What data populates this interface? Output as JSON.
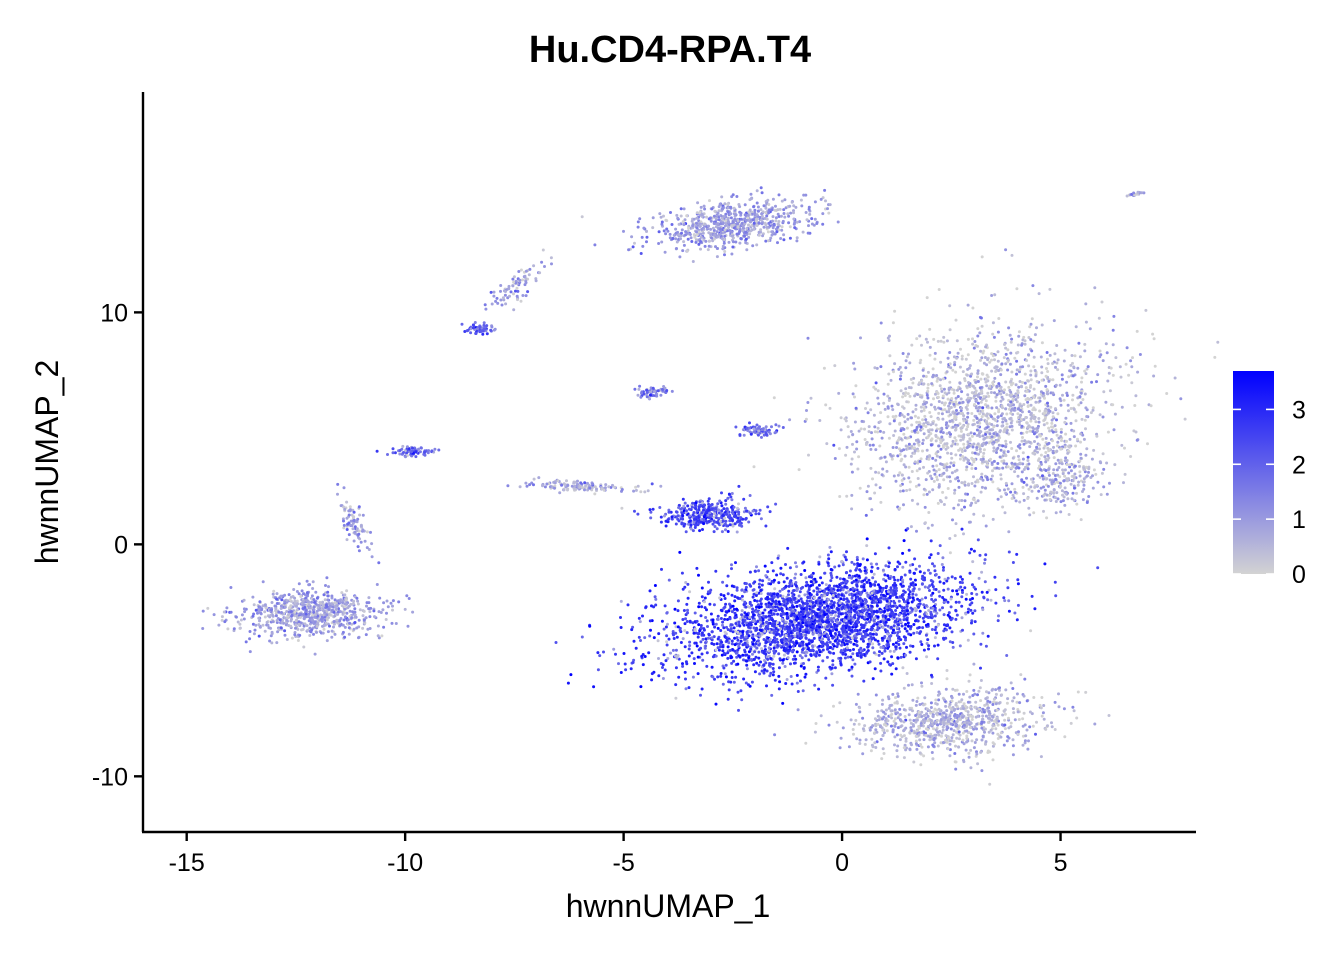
{
  "chart_data": {
    "type": "scatter",
    "title": "Hu.CD4-RPA.T4",
    "xlabel": "hwnnUMAP_1",
    "ylabel": "hwnnUMAP_2",
    "xlim": [
      -16.0,
      8.1
    ],
    "ylim": [
      -12.4,
      19.5
    ],
    "x_ticks": [
      {
        "value": -15,
        "label": "-15"
      },
      {
        "value": -10,
        "label": "-10"
      },
      {
        "value": -5,
        "label": "-5"
      },
      {
        "value": 0,
        "label": "0"
      },
      {
        "value": 5,
        "label": "5"
      }
    ],
    "y_ticks": [
      {
        "value": -10,
        "label": "-10"
      },
      {
        "value": 0,
        "label": "0"
      },
      {
        "value": 10,
        "label": "10"
      }
    ],
    "grid": false,
    "legend": {
      "placement": "right",
      "type": "colorbar",
      "min": 0,
      "max": 3.7,
      "ticks": [
        {
          "value": 0,
          "label": "0"
        },
        {
          "value": 1,
          "label": "1"
        },
        {
          "value": 2,
          "label": "2"
        },
        {
          "value": 3,
          "label": "3"
        }
      ],
      "colors": {
        "low": "#d3d3d3",
        "high": "#0000ff"
      }
    },
    "colors": {
      "low": "#d3d3d3",
      "high": "#0000ff"
    },
    "clusters": [
      {
        "center": [
          -0.5,
          -3.2
        ],
        "spread": [
          3.2,
          1.9
        ],
        "angle": 0.35,
        "expression": 2.7,
        "n": 3000
      },
      {
        "center": [
          3.2,
          5.5
        ],
        "spread": [
          2.6,
          3.6
        ],
        "angle": -0.35,
        "expression": 0.45,
        "n": 1800
      },
      {
        "center": [
          2.5,
          -7.6
        ],
        "spread": [
          2.0,
          1.3
        ],
        "angle": 0.15,
        "expression": 0.5,
        "n": 800
      },
      {
        "center": [
          -12.2,
          -3.0
        ],
        "spread": [
          1.5,
          0.9
        ],
        "angle": 0.1,
        "expression": 0.85,
        "n": 700
      },
      {
        "center": [
          -3.0,
          1.3
        ],
        "spread": [
          1.0,
          0.6
        ],
        "angle": 0.1,
        "expression": 2.4,
        "n": 350
      },
      {
        "center": [
          -2.5,
          13.8
        ],
        "spread": [
          1.7,
          0.9
        ],
        "angle": 0.3,
        "expression": 0.9,
        "n": 700
      },
      {
        "center": [
          -9.8,
          4.0
        ],
        "spread": [
          0.4,
          0.2
        ],
        "angle": 0.0,
        "expression": 1.9,
        "n": 80
      },
      {
        "center": [
          -11.2,
          1.0
        ],
        "spread": [
          0.25,
          1.2
        ],
        "angle": 0.2,
        "expression": 0.9,
        "n": 80
      },
      {
        "center": [
          -8.3,
          9.3
        ],
        "spread": [
          0.3,
          0.2
        ],
        "angle": 0.0,
        "expression": 1.9,
        "n": 60
      },
      {
        "center": [
          -7.5,
          11.0
        ],
        "spread": [
          0.35,
          1.2
        ],
        "angle": -0.5,
        "expression": 1.0,
        "n": 80
      },
      {
        "center": [
          -4.3,
          6.6
        ],
        "spread": [
          0.35,
          0.25
        ],
        "angle": 0.0,
        "expression": 1.5,
        "n": 60
      },
      {
        "center": [
          -1.9,
          4.9
        ],
        "spread": [
          0.45,
          0.25
        ],
        "angle": 0.0,
        "expression": 1.9,
        "n": 70
      },
      {
        "center": [
          -6.0,
          2.5
        ],
        "spread": [
          1.1,
          0.2
        ],
        "angle": -0.1,
        "expression": 0.7,
        "n": 120
      },
      {
        "center": [
          5.0,
          2.8
        ],
        "spread": [
          0.8,
          1.1
        ],
        "angle": -0.2,
        "expression": 0.6,
        "n": 200
      },
      {
        "center": [
          6.7,
          15.1
        ],
        "spread": [
          0.2,
          0.06
        ],
        "angle": 0.3,
        "expression": 0.6,
        "n": 20
      }
    ]
  }
}
